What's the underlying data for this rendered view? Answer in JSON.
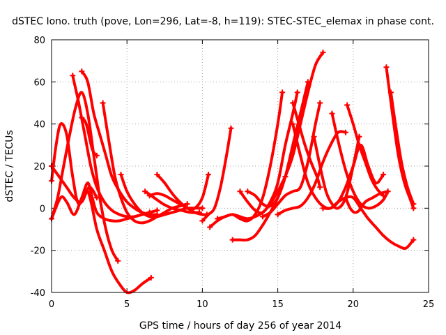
{
  "chart_data": {
    "type": "line",
    "title": "dSTEC Iono. truth (pove, Lon=296, Lat=-8, h=119): STEC-STEC_elemax in phase cont.",
    "xlabel": "GPS time / hours of day 256 of year 2014",
    "ylabel": "dSTEC  / TECUs",
    "xlim": [
      0,
      25
    ],
    "ylim": [
      -40,
      80
    ],
    "xticks": [
      0,
      5,
      10,
      15,
      20,
      25
    ],
    "yticks": [
      -40,
      -20,
      0,
      20,
      40,
      60,
      80
    ],
    "grid": true,
    "legend": "none",
    "color": "#ff0000",
    "series": [
      {
        "x": [
          0,
          0.4,
          0.8,
          1.2,
          1.6,
          2.0,
          2.4,
          2.8,
          3.2,
          3.6,
          4.0,
          4.4
        ],
        "y": [
          -5,
          5,
          20,
          35,
          48,
          55,
          45,
          25,
          5,
          -10,
          -20,
          -25
        ]
      },
      {
        "x": [
          0,
          0.3,
          0.6,
          1.0,
          1.4,
          1.8,
          2.4,
          3.0,
          3.5,
          4.0,
          4.5,
          5.0,
          5.5,
          6.0,
          6.6
        ],
        "y": [
          13,
          30,
          40,
          35,
          15,
          2,
          8,
          -10,
          -20,
          -30,
          -36,
          -40,
          -39,
          -36,
          -33
        ]
      },
      {
        "x": [
          0,
          0.5,
          1.0,
          1.5,
          2.0,
          2.5,
          3.0
        ],
        "y": [
          20,
          15,
          10,
          5,
          3,
          10,
          5
        ]
      },
      {
        "x": [
          0,
          0.6,
          1.0,
          1.5,
          2.0,
          2.4,
          2.7,
          3.0,
          3.5,
          4.0,
          4.5,
          5.0,
          5.5,
          6.0,
          6.5
        ],
        "y": [
          -5,
          5,
          3,
          -3,
          5,
          12,
          5,
          -2,
          -5,
          -6,
          -6,
          -5,
          -4,
          -3,
          -2
        ]
      },
      {
        "x": [
          1.4,
          1.8,
          2.2,
          2.6,
          3.0,
          3.5,
          4.0,
          4.5,
          5.0,
          5.5,
          6.0,
          6.5,
          7.0
        ],
        "y": [
          63,
          50,
          35,
          20,
          10,
          3,
          -1,
          -3,
          -4,
          -4,
          -3,
          -2,
          -1
        ]
      },
      {
        "x": [
          2.0,
          2.4,
          2.8,
          3.2,
          3.6,
          4.0,
          4.5,
          5.0,
          5.5,
          6.0,
          6.5,
          7.0
        ],
        "y": [
          65,
          60,
          45,
          35,
          25,
          15,
          8,
          3,
          0,
          -2,
          -3,
          -3
        ]
      },
      {
        "x": [
          3.4,
          3.8,
          4.2,
          4.6,
          5.0,
          5.5,
          6.0,
          6.5,
          7.0,
          7.5,
          8.0,
          8.5,
          9.0
        ],
        "y": [
          50,
          32,
          15,
          5,
          -2,
          -6,
          -7,
          -6,
          -4,
          -2,
          0,
          1,
          2
        ]
      },
      {
        "x": [
          2.0,
          2.3,
          2.7,
          3.0
        ],
        "y": [
          43,
          40,
          28,
          25
        ]
      },
      {
        "x": [
          4.6,
          5.0,
          5.5,
          6.0,
          6.5,
          7.0,
          7.5,
          8.0,
          8.5,
          9.0,
          9.5,
          10.0
        ],
        "y": [
          16,
          8,
          2,
          -2,
          -4,
          -4,
          -3,
          -2,
          -1,
          0,
          0,
          0
        ]
      },
      {
        "x": [
          6.2,
          6.8,
          7.4,
          8.0,
          8.6,
          9.2,
          9.8
        ],
        "y": [
          8,
          5,
          2,
          0,
          -1,
          -2,
          -2
        ]
      },
      {
        "x": [
          7.0,
          7.5,
          8.0,
          8.5,
          9.0,
          9.5,
          10.0,
          10.4
        ],
        "y": [
          16,
          12,
          7,
          3,
          0,
          0,
          5,
          16
        ]
      },
      {
        "x": [
          6.5,
          7.0,
          7.5,
          8.0,
          8.5,
          9.0,
          9.5,
          10.0,
          10.3
        ],
        "y": [
          6,
          7,
          6,
          4,
          2,
          0,
          -2,
          -3,
          -3
        ]
      },
      {
        "x": [
          10.0,
          10.4,
          10.8,
          11.2,
          11.6,
          11.9
        ],
        "y": [
          -6,
          -3,
          0,
          10,
          25,
          38
        ]
      },
      {
        "x": [
          10.5,
          11.0,
          11.5,
          12.0,
          12.5,
          13.0,
          13.5,
          14.0,
          14.5,
          15.0,
          15.5
        ],
        "y": [
          -9,
          -6,
          -4,
          -3,
          -4,
          -5,
          -4,
          -2,
          2,
          8,
          15
        ]
      },
      {
        "x": [
          11.0,
          11.5,
          12.0,
          12.5,
          13.0,
          13.5,
          14.0,
          14.5,
          15.0,
          15.3
        ],
        "y": [
          -5,
          -4,
          -3,
          -5,
          -6,
          -3,
          5,
          20,
          40,
          55
        ]
      },
      {
        "x": [
          12.5,
          13.0,
          13.5,
          14.0,
          14.5,
          15.0,
          15.5,
          16.0,
          16.3
        ],
        "y": [
          8,
          3,
          -1,
          -2,
          3,
          12,
          30,
          45,
          55
        ]
      },
      {
        "x": [
          13.0,
          13.5,
          14.0,
          14.5,
          15.0,
          15.5,
          16.0,
          16.5,
          17.0
        ],
        "y": [
          8,
          6,
          2,
          1,
          5,
          15,
          30,
          45,
          60
        ]
      },
      {
        "x": [
          12.0,
          12.5,
          13.0,
          13.5,
          14.0,
          14.5,
          15.0,
          15.5,
          16.0,
          16.5,
          17.0,
          17.5,
          18.0
        ],
        "y": [
          -15,
          -15,
          -15,
          -13,
          -8,
          -2,
          5,
          15,
          25,
          40,
          55,
          68,
          74
        ]
      },
      {
        "x": [
          14.0,
          14.5,
          15.0,
          15.5,
          16.0,
          16.5,
          17.0,
          17.5,
          17.8
        ],
        "y": [
          -4,
          -2,
          2,
          6,
          8,
          10,
          22,
          40,
          50
        ]
      },
      {
        "x": [
          15.0,
          15.5,
          16.0,
          16.5,
          17.0,
          17.5,
          18.0,
          18.5,
          19.0,
          19.5
        ],
        "y": [
          -3,
          -1,
          0,
          1,
          5,
          12,
          22,
          30,
          36,
          36
        ]
      },
      {
        "x": [
          16.0,
          16.5,
          17.0,
          17.5,
          18.0,
          18.5,
          19.0,
          19.5,
          20.0,
          20.5,
          21.0,
          21.5,
          22.0
        ],
        "y": [
          40,
          25,
          12,
          5,
          1,
          0,
          3,
          10,
          20,
          30,
          20,
          12,
          16
        ]
      },
      {
        "x": [
          17.4,
          17.8,
          18.2,
          18.6,
          19.0,
          19.5,
          20.0,
          20.4
        ],
        "y": [
          34,
          20,
          8,
          2,
          0,
          5,
          20,
          34
        ]
      },
      {
        "x": [
          18.0,
          18.5,
          19.0,
          19.5,
          20.0,
          20.5,
          21.0,
          21.5,
          22.0,
          22.5,
          23.0,
          23.5,
          24.0
        ],
        "y": [
          0,
          0,
          3,
          5,
          5,
          0,
          -5,
          -9,
          -13,
          -16,
          -18,
          -19,
          -15
        ]
      },
      {
        "x": [
          19.5,
          19.8,
          20.1,
          20.4,
          20.8,
          21.3,
          21.8,
          22.3
        ],
        "y": [
          5,
          0,
          -2,
          -1,
          3,
          5,
          7,
          8
        ]
      },
      {
        "x": [
          18.6,
          19.0,
          19.5,
          20.0,
          20.5,
          21.0,
          21.5,
          22.0,
          22.3
        ],
        "y": [
          45,
          32,
          18,
          8,
          2,
          0,
          1,
          4,
          8
        ]
      },
      {
        "x": [
          19.6,
          20.0,
          20.4,
          20.8,
          21.2,
          21.6,
          22.0
        ],
        "y": [
          49,
          40,
          30,
          22,
          14,
          9,
          6
        ]
      },
      {
        "x": [
          22.2,
          22.6,
          23.0,
          23.4,
          23.8,
          24.0
        ],
        "y": [
          67,
          45,
          25,
          12,
          4,
          0
        ]
      },
      {
        "x": [
          22.5,
          22.8,
          23.2,
          23.6,
          24.0
        ],
        "y": [
          55,
          40,
          22,
          10,
          2
        ]
      },
      {
        "x": [
          16.0,
          16.4,
          16.8,
          17.2,
          17.6,
          17.8
        ],
        "y": [
          50,
          40,
          30,
          22,
          15,
          10
        ]
      }
    ]
  }
}
